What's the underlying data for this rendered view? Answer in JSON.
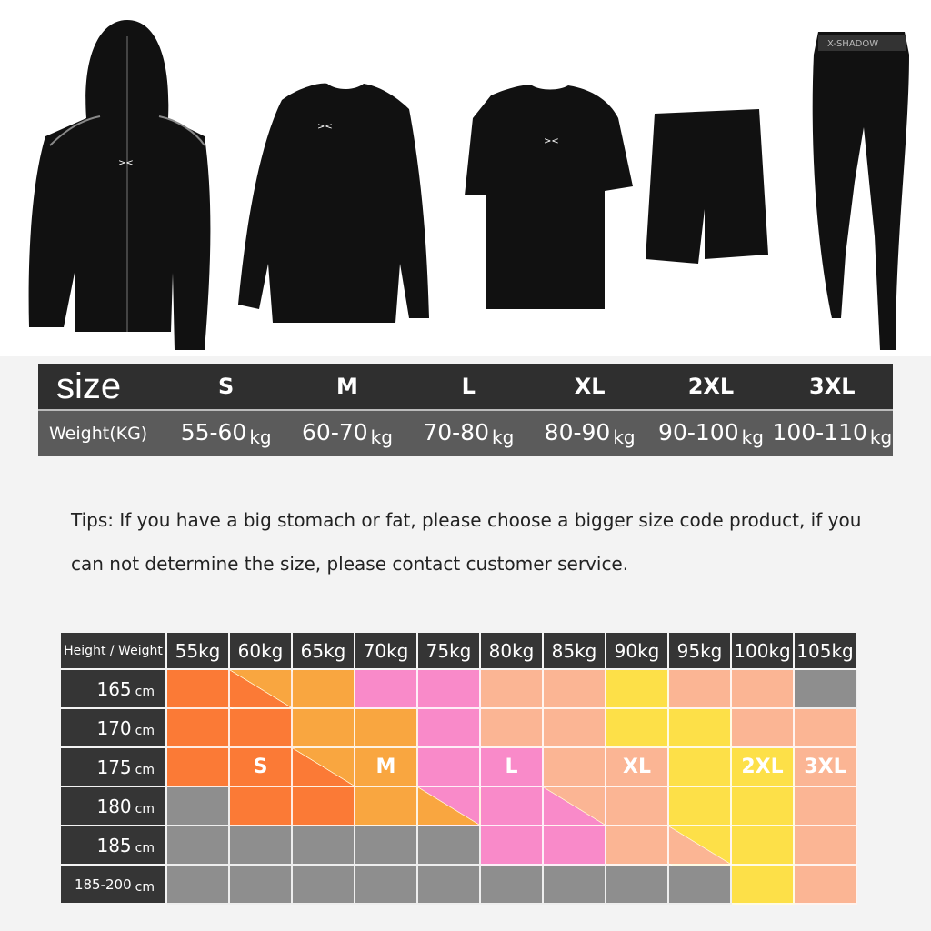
{
  "products": [
    {
      "name": "hooded zip jacket",
      "logo": "X-logo"
    },
    {
      "name": "long sleeve shirt",
      "logo": "X-logo"
    },
    {
      "name": "short sleeve shirt",
      "logo": "X-logo"
    },
    {
      "name": "shorts"
    },
    {
      "name": "compression pants",
      "waistband_text": "X-SHADOW"
    }
  ],
  "size_table": {
    "header_label": "size",
    "row_label": "Weight(KG)",
    "sizes": [
      "S",
      "M",
      "L",
      "XL",
      "2XL",
      "3XL"
    ],
    "weights": [
      "55-60",
      "60-70",
      "70-80",
      "80-90",
      "90-100",
      "100-110"
    ],
    "unit": "kg"
  },
  "tips": "Tips: If you have a big stomach or  fat, please choose a bigger size code product, if you can not determine the size, please contact customer service.",
  "grid": {
    "corner_label": "Height / Weight",
    "weights": [
      "55kg",
      "60kg",
      "65kg",
      "70kg",
      "75kg",
      "80kg",
      "85kg",
      "90kg",
      "95kg",
      "100kg",
      "105kg"
    ],
    "heights": [
      {
        "value": "165",
        "unit": "cm"
      },
      {
        "value": "170",
        "unit": "cm"
      },
      {
        "value": "175",
        "unit": "cm"
      },
      {
        "value": "180",
        "unit": "cm"
      },
      {
        "value": "185",
        "unit": "cm"
      },
      {
        "value": "185-200",
        "unit": "cm"
      }
    ],
    "colors": {
      "D": "#fb7a36",
      "O": "#f9a640",
      "P": "#f98ac9",
      "E": "#fbb594",
      "Y": "#fde048",
      "G": "#8e8e8e"
    },
    "cells": [
      [
        "D",
        "D/O",
        "O",
        "P",
        "P",
        "E",
        "E",
        "Y",
        "E",
        "E",
        "G"
      ],
      [
        "D",
        "D",
        "O",
        "O",
        "P",
        "E",
        "E",
        "Y",
        "Y",
        "E",
        "E"
      ],
      [
        "D",
        "D",
        "D/O",
        "O",
        "P",
        "P",
        "E",
        "E",
        "Y",
        "Y",
        "E"
      ],
      [
        "G",
        "D",
        "D",
        "O",
        "O/P",
        "P",
        "P/E",
        "E",
        "Y",
        "Y",
        "E"
      ],
      [
        "G",
        "G",
        "G",
        "G",
        "G",
        "P",
        "P",
        "E",
        "E/Y",
        "Y",
        "E"
      ],
      [
        "G",
        "G",
        "G",
        "G",
        "G",
        "G",
        "G",
        "G",
        "G",
        "Y",
        "E"
      ]
    ],
    "size_labels": [
      {
        "row": 2,
        "col": 1,
        "text": "S"
      },
      {
        "row": 2,
        "col": 3,
        "text": "M"
      },
      {
        "row": 2,
        "col": 5,
        "text": "L"
      },
      {
        "row": 2,
        "col": 7,
        "text": "XL"
      },
      {
        "row": 2,
        "col": 9,
        "text": "2XL"
      },
      {
        "row": 2,
        "col": 10,
        "text": "3XL"
      }
    ]
  }
}
